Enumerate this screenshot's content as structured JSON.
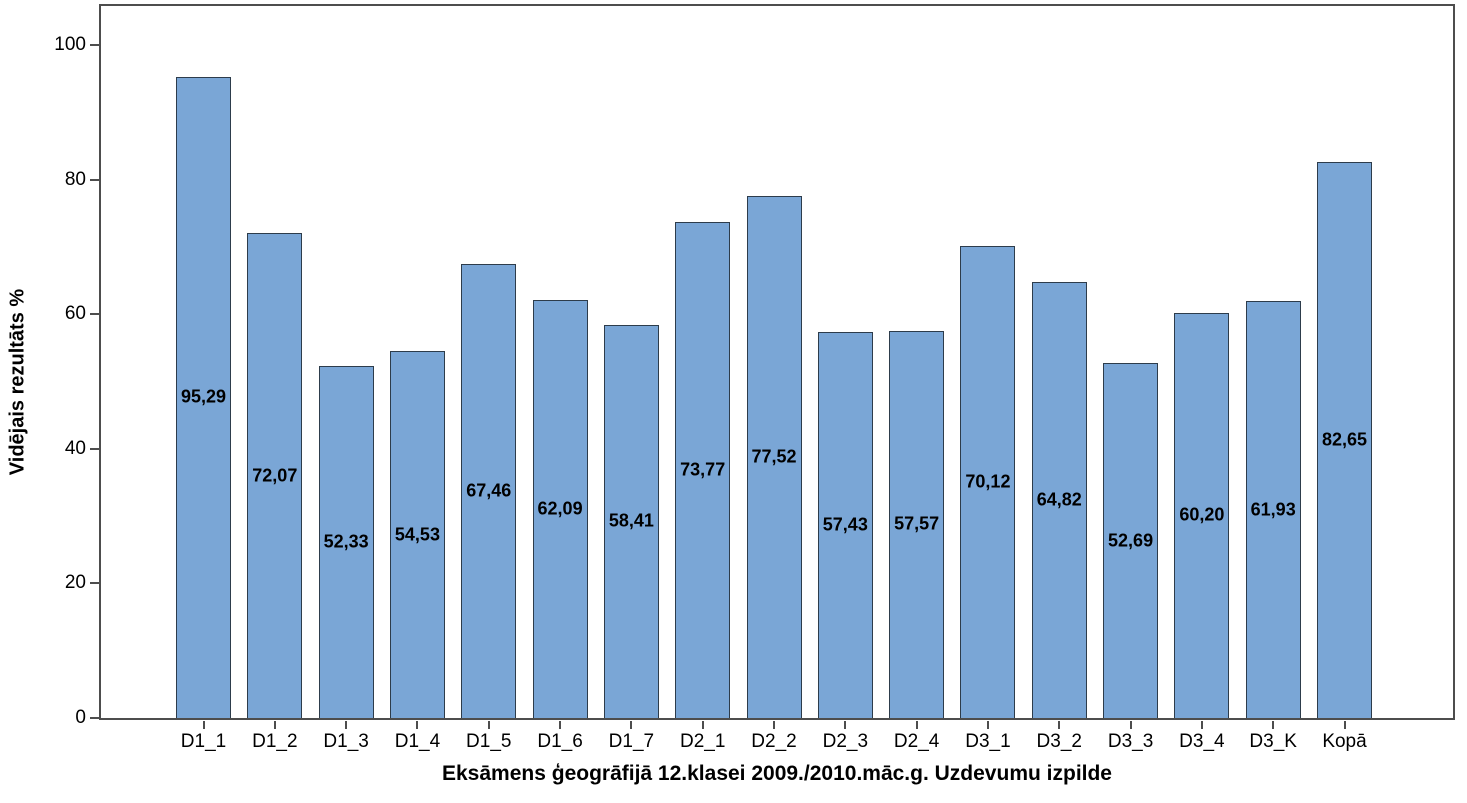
{
  "chart_data": {
    "type": "bar",
    "title": "",
    "xlabel": "Eksāmens ģeogrāfijā 12.klasei 2009./2010.māc.g. Uzdevumu izpilde",
    "ylabel": "Vidējais rezultāts %",
    "categories": [
      "D1_1",
      "D1_2",
      "D1_3",
      "D1_4",
      "D1_5",
      "D1_6",
      "D1_7",
      "D2_1",
      "D2_2",
      "D2_3",
      "D2_4",
      "D3_1",
      "D3_2",
      "D3_3",
      "D3_4",
      "D3_K",
      "Kopā"
    ],
    "values": [
      95.29,
      72.07,
      52.33,
      54.53,
      67.46,
      62.09,
      58.41,
      73.77,
      77.52,
      57.43,
      57.57,
      70.12,
      64.82,
      52.69,
      60.2,
      61.93,
      82.65
    ],
    "value_labels": [
      "95,29",
      "72,07",
      "52,33",
      "54,53",
      "67,46",
      "62,09",
      "58,41",
      "73,77",
      "77,52",
      "57,43",
      "57,57",
      "70,12",
      "64,82",
      "52,69",
      "60,20",
      "61,93",
      "82,65"
    ],
    "ylim": [
      0,
      100
    ],
    "yticks": [
      0,
      20,
      40,
      60,
      80,
      100
    ],
    "grid": "off",
    "legend": "none",
    "value_label_position": "center-of-bar",
    "colors": {
      "bar_fill": "#7AA6D6",
      "bar_border": "#2d3c4b",
      "frame": "#4d4d4d",
      "text": "#000000",
      "background": "#ffffff"
    }
  }
}
